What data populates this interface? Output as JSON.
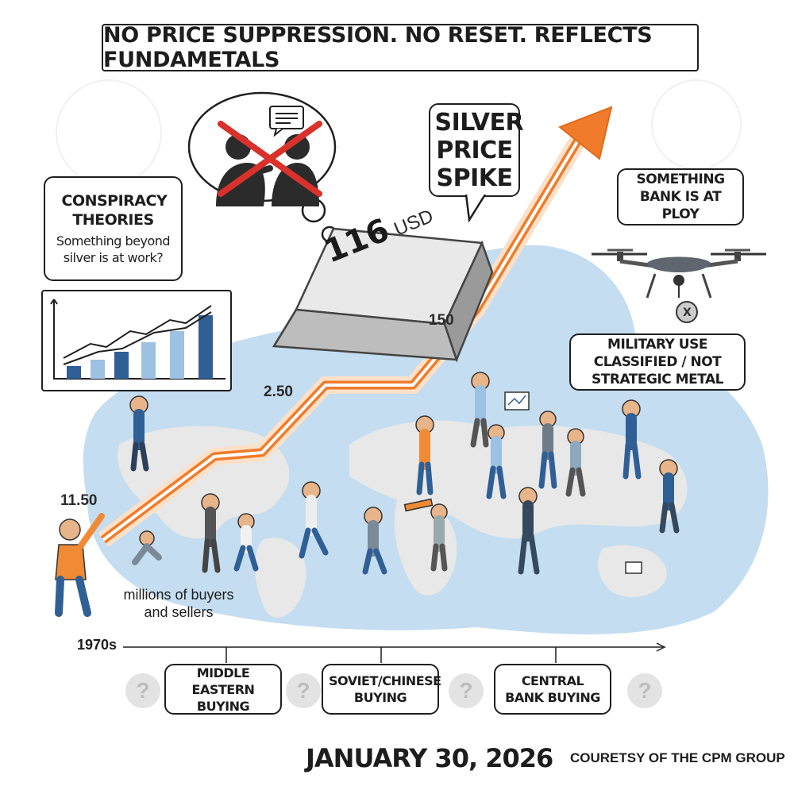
{
  "title": "NO PRICE SUPPRESSION. NO RESET. REFLECTS FUNDAMETALS",
  "thought_bubble": {
    "icons": [
      "two-people-arguing-icon",
      "red-x-icon",
      "speech-bubble-icon"
    ]
  },
  "conspiracy": {
    "heading": "CONSPIRACY THEORIES",
    "question": "Something beyond silver is at work?"
  },
  "silver_bar": {
    "label_number": "116",
    "label_unit": "USD"
  },
  "spike_label": "SILVER PRICE SPIKE",
  "bank_label": "SOMETHING BANK IS AT PLOY",
  "military_label": "MILITARY USE CLASSIFIED / NOT STRATEGIC METAL",
  "price_labels": {
    "start": "11.50",
    "mid": "2.50",
    "high": "150"
  },
  "crowd_caption": "millions of buyers and sellers",
  "timeline": {
    "start_label": "1970s"
  },
  "eras": [
    {
      "label": "MIDDLE EASTERN BUYING"
    },
    {
      "label": "SOVIET/CHINESE BUYING"
    },
    {
      "label": "CENTRAL BANK BUYING"
    }
  ],
  "date": "JANUARY 30, 2026",
  "credit": "COURETSY OF THE CPM GROUP",
  "colors": {
    "arrow": "#f07b2a",
    "map_water": "#c4ddf0",
    "land": "#e6e6e6",
    "bars": "#2f5f95",
    "red_x": "#d9312b"
  }
}
